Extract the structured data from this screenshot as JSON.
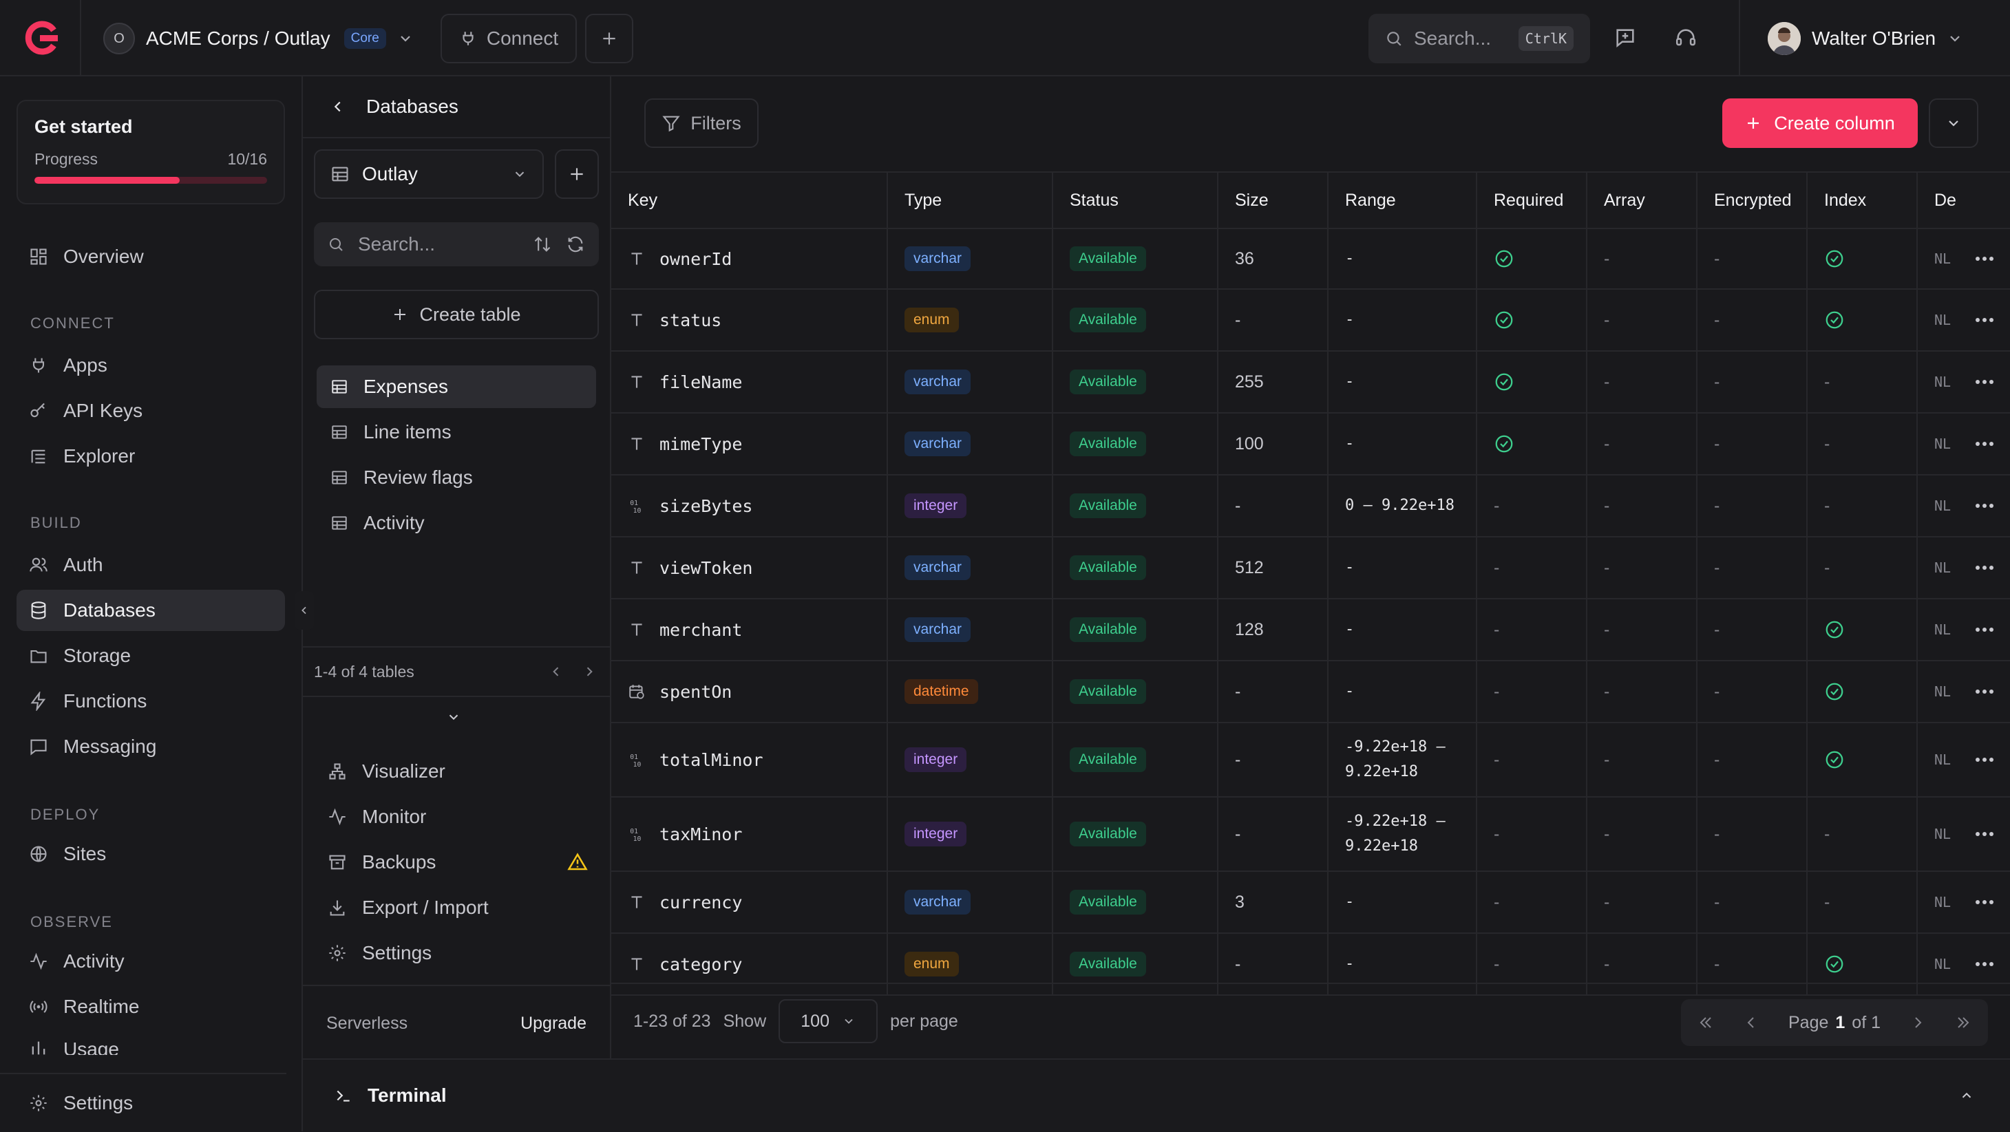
{
  "topbar": {
    "org_initial": "O",
    "org_name": "ACME Corps / Outlay",
    "tier_badge": "Core",
    "connect_label": "Connect",
    "search_placeholder": "Search...",
    "search_shortcut": "CtrlK",
    "user_name": "Walter O'Brien"
  },
  "sidebar": {
    "get_started_title": "Get started",
    "progress_label": "Progress",
    "progress_value": "10/16",
    "progress_fraction": 0.625,
    "overview": "Overview",
    "connect_heading": "CONNECT",
    "apps": "Apps",
    "api_keys": "API Keys",
    "explorer": "Explorer",
    "build_heading": "BUILD",
    "auth": "Auth",
    "databases": "Databases",
    "storage": "Storage",
    "functions": "Functions",
    "messaging": "Messaging",
    "deploy_heading": "DEPLOY",
    "sites": "Sites",
    "observe_heading": "OBSERVE",
    "activity": "Activity",
    "realtime": "Realtime",
    "usage": "Usage",
    "settings": "Settings"
  },
  "panel": {
    "title": "Databases",
    "database_name": "Outlay",
    "search_placeholder": "Search...",
    "create_table": "Create table",
    "tables": [
      "Expenses",
      "Line items",
      "Review flags",
      "Activity"
    ],
    "pager_text": "1-4 of 4 tables",
    "tools": {
      "visualizer": "Visualizer",
      "monitor": "Monitor",
      "backups": "Backups",
      "export_import": "Export / Import",
      "settings": "Settings"
    },
    "plan_label": "Serverless",
    "upgrade_label": "Upgrade"
  },
  "toolbar": {
    "filters": "Filters",
    "create_column": "Create column"
  },
  "table": {
    "headers": {
      "key": "Key",
      "type": "Type",
      "status": "Status",
      "size": "Size",
      "range": "Range",
      "required": "Required",
      "array": "Array",
      "encrypted": "Encrypted",
      "index": "Index",
      "default": "De"
    },
    "rows": [
      {
        "key": "ownerId",
        "type": "varchar",
        "status": "Available",
        "size": "36",
        "range": "-",
        "range2": "",
        "required": true,
        "array": "-",
        "encrypted": "-",
        "index": true,
        "default": "NL",
        "icon": "text"
      },
      {
        "key": "status",
        "type": "enum",
        "status": "Available",
        "size": "-",
        "range": "-",
        "range2": "",
        "required": true,
        "array": "-",
        "encrypted": "-",
        "index": true,
        "default": "NL",
        "icon": "text"
      },
      {
        "key": "fileName",
        "type": "varchar",
        "status": "Available",
        "size": "255",
        "range": "-",
        "range2": "",
        "required": true,
        "array": "-",
        "encrypted": "-",
        "index": false,
        "default": "NL",
        "icon": "text"
      },
      {
        "key": "mimeType",
        "type": "varchar",
        "status": "Available",
        "size": "100",
        "range": "-",
        "range2": "",
        "required": true,
        "array": "-",
        "encrypted": "-",
        "index": false,
        "default": "NL",
        "icon": "text"
      },
      {
        "key": "sizeBytes",
        "type": "integer",
        "status": "Available",
        "size": "-",
        "range": "0 – 9.22e+18",
        "range2": "",
        "required": false,
        "array": "-",
        "encrypted": "-",
        "index": false,
        "default": "NL",
        "icon": "number"
      },
      {
        "key": "viewToken",
        "type": "varchar",
        "status": "Available",
        "size": "512",
        "range": "-",
        "range2": "",
        "required": false,
        "array": "-",
        "encrypted": "-",
        "index": false,
        "default": "NL",
        "icon": "text"
      },
      {
        "key": "merchant",
        "type": "varchar",
        "status": "Available",
        "size": "128",
        "range": "-",
        "range2": "",
        "required": false,
        "array": "-",
        "encrypted": "-",
        "index": true,
        "default": "NL",
        "icon": "text"
      },
      {
        "key": "spentOn",
        "type": "datetime",
        "status": "Available",
        "size": "-",
        "range": "-",
        "range2": "",
        "required": false,
        "array": "-",
        "encrypted": "-",
        "index": true,
        "default": "NL",
        "icon": "calendar"
      },
      {
        "key": "totalMinor",
        "type": "integer",
        "status": "Available",
        "size": "-",
        "range": "-9.22e+18 –",
        "range2": "9.22e+18",
        "required": false,
        "array": "-",
        "encrypted": "-",
        "index": true,
        "default": "NL",
        "icon": "number"
      },
      {
        "key": "taxMinor",
        "type": "integer",
        "status": "Available",
        "size": "-",
        "range": "-9.22e+18 –",
        "range2": "9.22e+18",
        "required": false,
        "array": "-",
        "encrypted": "-",
        "index": false,
        "default": "NL",
        "icon": "number"
      },
      {
        "key": "currency",
        "type": "varchar",
        "status": "Available",
        "size": "3",
        "range": "-",
        "range2": "",
        "required": false,
        "array": "-",
        "encrypted": "-",
        "index": false,
        "default": "NL",
        "icon": "text"
      },
      {
        "key": "category",
        "type": "enum",
        "status": "Available",
        "size": "-",
        "range": "-",
        "range2": "",
        "required": false,
        "array": "-",
        "encrypted": "-",
        "index": true,
        "default": "NL",
        "icon": "text"
      }
    ]
  },
  "footer": {
    "count_text": "1-23 of 23",
    "show_label": "Show",
    "per_page_value": "100",
    "per_page_label": "per page",
    "page_label": "Page",
    "page_current": "1",
    "page_of": "of 1"
  },
  "terminal": {
    "label": "Terminal"
  },
  "colors": {
    "accent": "#f4365f",
    "available": "#3ecf8e",
    "background": "#19191c"
  }
}
